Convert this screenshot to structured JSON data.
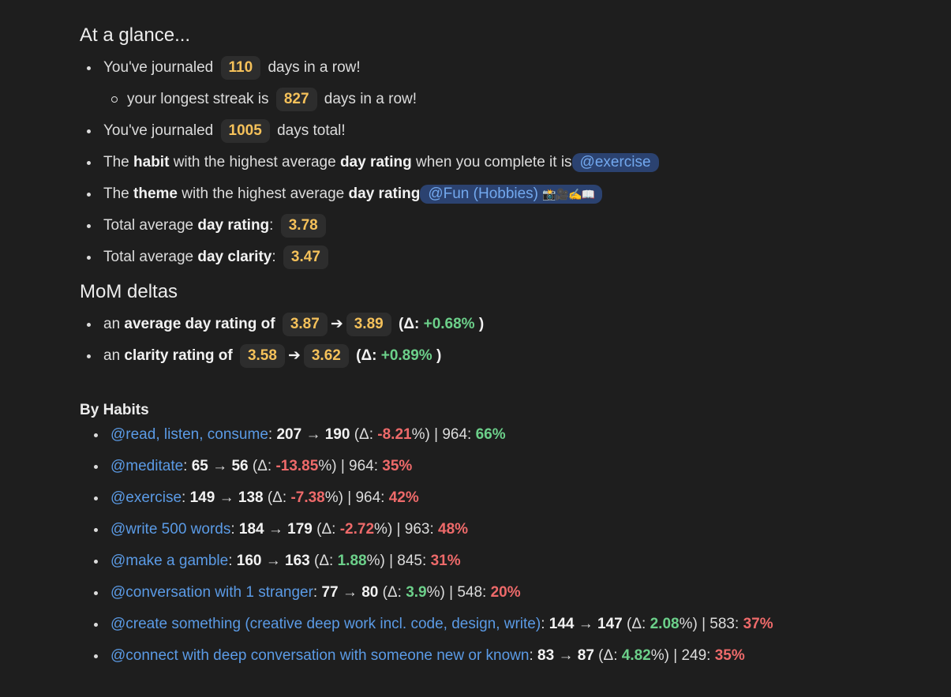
{
  "glance": {
    "title": "At a glance...",
    "streak_prefix": "You've journaled",
    "streak_days": "110",
    "streak_suffix": "days in a row!",
    "longest_prefix": "your longest streak is",
    "longest_days": "827",
    "longest_suffix": "days in a row!",
    "total_prefix": "You've journaled",
    "total_days": "1005",
    "total_suffix": "days total!",
    "habit_the": "The",
    "habit_word": "habit",
    "habit_mid": "with the highest average",
    "habit_day_rating": "day rating",
    "habit_tail": "when you complete it is",
    "habit_tag": "@exercise",
    "theme_the": "The",
    "theme_word": "theme",
    "theme_mid": "with the highest average",
    "theme_day_rating": "day rating",
    "theme_tag": "@Fun (Hobbies)",
    "theme_emoji": "📸🎥✍️📖",
    "avg_rating_prefix": "Total average",
    "avg_rating_label": "day rating",
    "avg_rating_colon": ":",
    "avg_rating_value": "3.78",
    "avg_clarity_prefix": "Total average",
    "avg_clarity_label": "day clarity",
    "avg_clarity_colon": ":",
    "avg_clarity_value": "3.47"
  },
  "mom": {
    "title": "MoM deltas",
    "rating_an": "an",
    "rating_label": "average day rating of",
    "rating_from": "3.87",
    "rating_to": "3.89",
    "rating_delta_prefix": "(Δ:",
    "rating_delta": "+0.68%",
    "rating_close": ")",
    "clarity_an": "an",
    "clarity_label": "clarity rating of",
    "clarity_from": "3.58",
    "clarity_to": "3.62",
    "clarity_delta_prefix": "(Δ:",
    "clarity_delta": "+0.89%",
    "clarity_close": ")",
    "arrow": "➔"
  },
  "habits": {
    "title": "By Habits",
    "arrow": "→",
    "delta_open": "(Δ: ",
    "items": [
      {
        "name": "@read, listen, consume",
        "from": "207",
        "to": "190",
        "delta": "-8.21",
        "delta_sign": "neg",
        "total": "964",
        "pct": "66%",
        "pct_sign": "pos"
      },
      {
        "name": "@meditate",
        "from": "65",
        "to": "56",
        "delta": "-13.85",
        "delta_sign": "neg",
        "total": "964",
        "pct": "35%",
        "pct_sign": "neg"
      },
      {
        "name": "@exercise",
        "from": "149",
        "to": "138",
        "delta": "-7.38",
        "delta_sign": "neg",
        "total": "964",
        "pct": "42%",
        "pct_sign": "neg"
      },
      {
        "name": "@write 500 words",
        "from": "184",
        "to": "179",
        "delta": "-2.72",
        "delta_sign": "neg",
        "total": "963",
        "pct": "48%",
        "pct_sign": "neg"
      },
      {
        "name": "@make a gamble",
        "from": "160",
        "to": "163",
        "delta": "1.88",
        "delta_sign": "pos",
        "total": "845",
        "pct": "31%",
        "pct_sign": "neg"
      },
      {
        "name": "@conversation with 1 stranger",
        "from": "77",
        "to": "80",
        "delta": "3.9",
        "delta_sign": "pos",
        "total": "548",
        "pct": "20%",
        "pct_sign": "neg"
      },
      {
        "name": "@create something (creative deep work incl. code, design, write)",
        "from": "144",
        "to": "147",
        "delta": "2.08",
        "delta_sign": "pos",
        "total": "583",
        "pct": "37%",
        "pct_sign": "neg"
      },
      {
        "name": "@connect with deep conversation with someone new or known",
        "from": "83",
        "to": "87",
        "delta": "4.82",
        "delta_sign": "pos",
        "total": "249",
        "pct": "35%",
        "pct_sign": "neg"
      }
    ]
  },
  "colors": {
    "background": "#1e1e1e",
    "pill_text": "#f5c15a",
    "link": "#5b9be6",
    "positive": "#6cd08a",
    "negative": "#ee6a6a"
  }
}
